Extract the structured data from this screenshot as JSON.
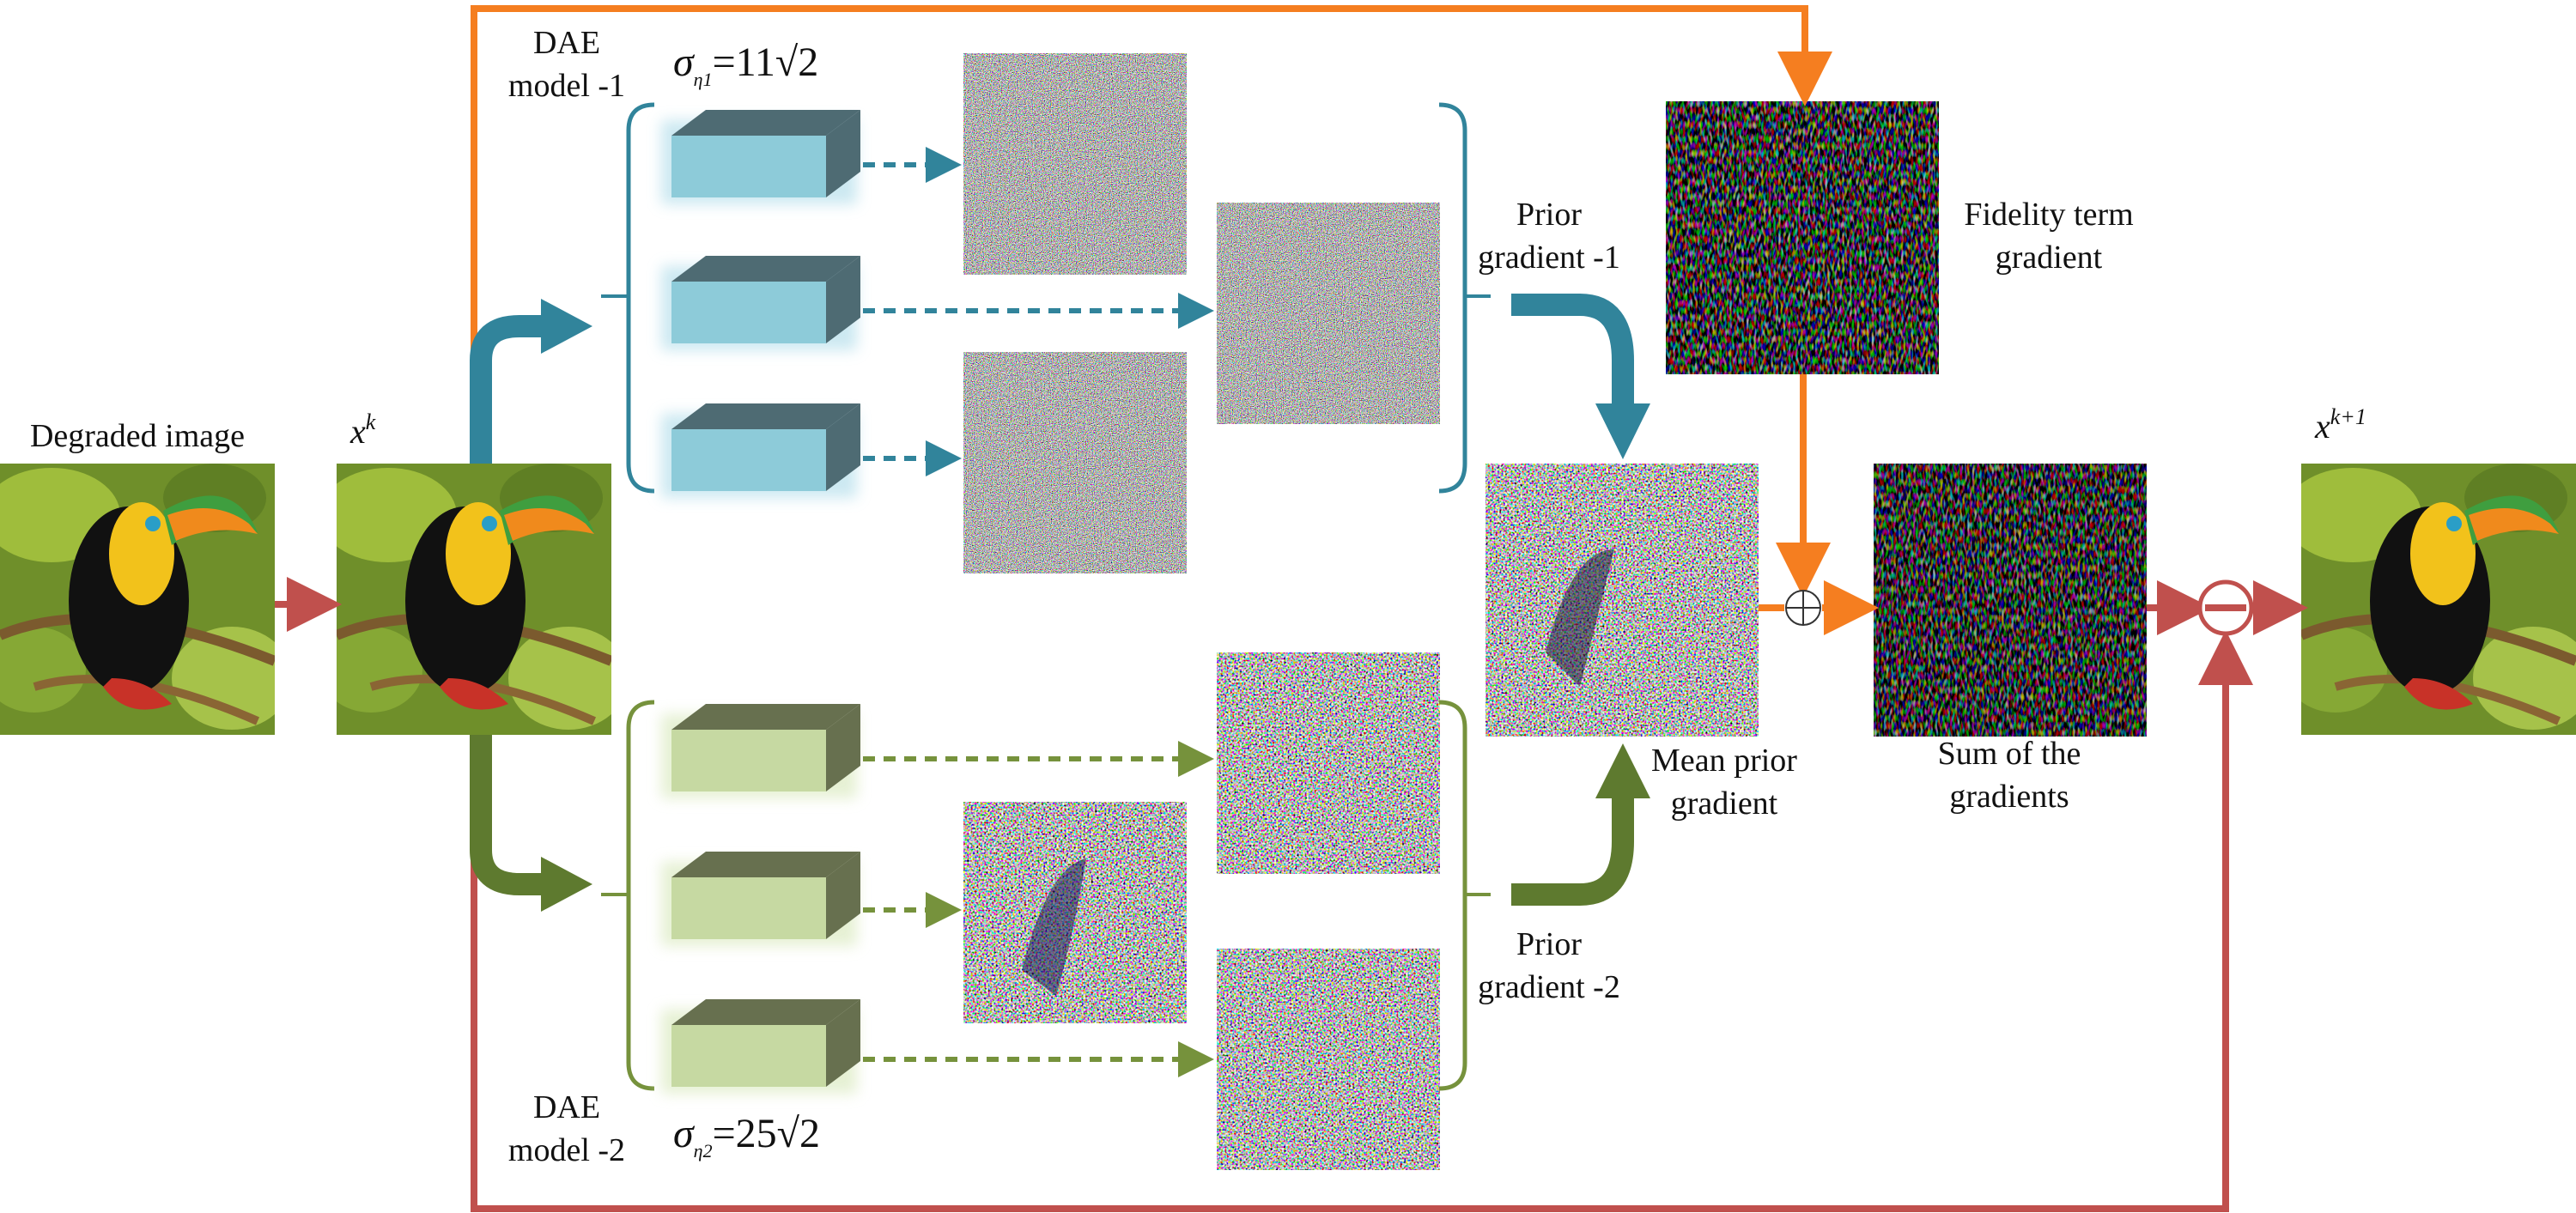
{
  "labels": {
    "degraded": "Degraded image",
    "xk_base": "x",
    "xk_sup": "k",
    "xk1_base": "x",
    "xk1_sup": "k+1",
    "dae1_line1": "DAE",
    "dae1_line2": "model -1",
    "dae2_line1": "DAE",
    "dae2_line2": "model -2",
    "sigma1_sym": "σ",
    "sigma1_sub": "η1",
    "sigma1_val": "=11",
    "sigma1_root": "2",
    "sigma2_sym": "σ",
    "sigma2_sub": "η2",
    "sigma2_val": "=25",
    "sigma2_root": "2",
    "prior1_line1": "Prior",
    "prior1_line2": "gradient -1",
    "prior2_line1": "Prior",
    "prior2_line2": "gradient -2",
    "fidelity_line1": "Fidelity term",
    "fidelity_line2": "gradient",
    "mean_line1": "Mean prior",
    "mean_line2": "gradient",
    "sum_line1": "Sum of the",
    "sum_line2": "gradients",
    "plus_symbol": "⊕",
    "minus_symbol": "⊖"
  },
  "colors": {
    "orange": "#F57E20",
    "red": "#C0504D",
    "teal": "#31849B",
    "olive": "#5E7A2F",
    "teal_box": "#8DCBD9",
    "teal_box_dark": "#4E6B73",
    "olive_box": "#C6D9A2",
    "olive_box_dark": "#67704F"
  }
}
